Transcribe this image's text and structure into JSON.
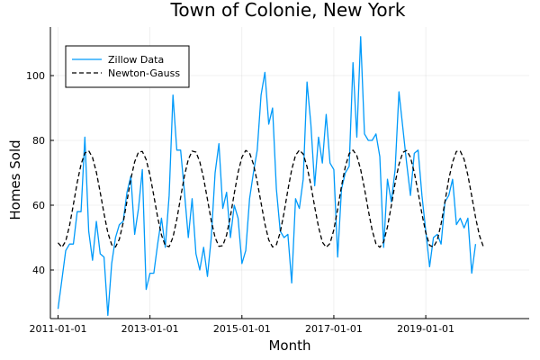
{
  "chart_data": {
    "type": "line",
    "title": "Town of Colonie, New York",
    "xlabel": "Month",
    "ylabel": "Homes Sold",
    "x_start": "2011-01",
    "x_ticks": [
      "2011-01-01",
      "2013-01-01",
      "2015-01-01",
      "2017-01-01",
      "2019-01-01"
    ],
    "y_ticks": [
      40,
      60,
      80,
      100
    ],
    "xlim": [
      "2010-11",
      "2021-04"
    ],
    "ylim": [
      25,
      115
    ],
    "grid": true,
    "legend_position": "top-left",
    "series": [
      {
        "name": "Zillow Data",
        "color": "#009AFA",
        "dash": "solid",
        "values": [
          28,
          37,
          46,
          48,
          48,
          58,
          58,
          81,
          52,
          43,
          55,
          45,
          44,
          26,
          42,
          50,
          54,
          55,
          64,
          69,
          51,
          59,
          71,
          34,
          39,
          39,
          48,
          56,
          47,
          63,
          94,
          77,
          77,
          64,
          50,
          62,
          45,
          40,
          47,
          38,
          50,
          70,
          79,
          59,
          64,
          50,
          60,
          56,
          42,
          46,
          62,
          70,
          77,
          94,
          101,
          85,
          90,
          65,
          52,
          50,
          51,
          36,
          62,
          59,
          68,
          98,
          85,
          66,
          81,
          73,
          88,
          73,
          71,
          44,
          65,
          70,
          72,
          104,
          81,
          112,
          82,
          80,
          80,
          82,
          75,
          47,
          68,
          61,
          71,
          95,
          84,
          73,
          63,
          76,
          77,
          63,
          52,
          41,
          50,
          51,
          48,
          61,
          63,
          68,
          54,
          56,
          53,
          56,
          39,
          48
        ]
      },
      {
        "name": "Newton-Gauss",
        "color": "#000000",
        "dash": "dashed",
        "values": [
          48.4,
          47.0,
          48.9,
          53.7,
          60.2,
          67.0,
          72.6,
          76.1,
          76.8,
          74.7,
          70.2,
          64.0,
          57.4,
          51.5,
          47.8,
          47.1,
          49.5,
          54.6,
          61.3,
          68.1,
          73.4,
          76.4,
          76.6,
          74.1,
          69.3,
          62.9,
          56.3,
          50.8,
          47.5,
          47.2,
          50.1,
          55.6,
          62.4,
          69.1,
          74.1,
          76.7,
          76.4,
          73.4,
          68.3,
          61.8,
          55.2,
          50.0,
          47.3,
          47.5,
          50.8,
          56.6,
          63.6,
          70.1,
          74.8,
          76.9,
          76.1,
          72.7,
          67.2,
          60.7,
          54.2,
          49.3,
          47.1,
          47.8,
          51.6,
          57.7,
          64.7,
          71.0,
          75.4,
          77.0,
          75.8,
          71.9,
          66.2,
          59.5,
          53.3,
          48.6,
          47.0,
          48.2,
          52.4,
          58.8,
          65.9,
          71.9,
          75.9,
          77.0,
          75.3,
          71.0,
          65.1,
          58.4,
          52.3,
          48.1,
          47.0,
          48.7,
          53.3,
          59.8,
          66.9,
          72.6,
          76.3,
          76.9,
          74.8,
          70.1,
          64.0,
          57.3,
          51.5,
          47.6,
          47.1,
          49.2,
          54.2,
          61.0,
          68.0,
          73.3,
          76.6,
          76.7,
          74.2,
          69.2,
          62.8,
          56.2,
          50.7,
          47.3
        ]
      }
    ]
  }
}
